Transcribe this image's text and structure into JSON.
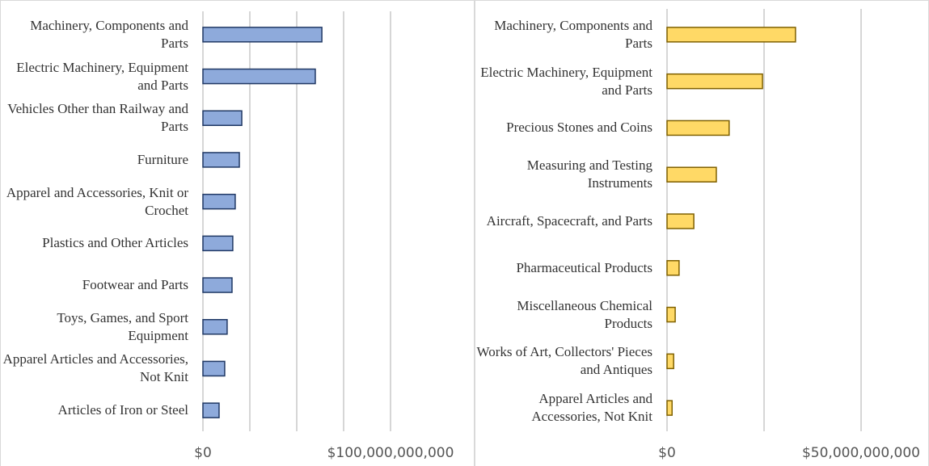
{
  "chart_data": [
    {
      "type": "bar",
      "orientation": "horizontal",
      "categories": [
        "Machinery, Components and Parts",
        "Electric Machinery, Equipment and Parts",
        "Vehicles Other than Railway and Parts",
        "Furniture",
        "Apparel and Accessories, Knit or Crochet",
        "Plastics and Other Articles",
        "Footwear and Parts",
        "Toys, Games, and Sport Equipment",
        "Apparel Articles and Accessories, Not Knit",
        "Articles of Iron or Steel"
      ],
      "values": [
        63400000000,
        59900000000,
        20700000000,
        19400000000,
        17200000000,
        15900000000,
        15500000000,
        12900000000,
        11600000000,
        8600000000
      ],
      "color": "#8eaadb",
      "edge_color": "#203864",
      "xlim": [
        0,
        100000000000
      ],
      "xticks": [
        {
          "value": 0,
          "label": "$0"
        },
        {
          "value": 100000000000,
          "label": "$100,000,000,000"
        }
      ],
      "xminor": [
        25000000000,
        50000000000,
        75000000000
      ],
      "grid": true
    },
    {
      "type": "bar",
      "orientation": "horizontal",
      "categories": [
        "Machinery, Components and Parts",
        "Electric Machinery, Equipment and Parts",
        "Precious Stones and Coins",
        "Measuring and Testing Instruments",
        "Aircraft, Spacecraft, and Parts",
        "Pharmaceutical Products",
        "Miscellaneous Chemical Products",
        "Works of Art, Collectors' Pieces and Antiques",
        "Apparel Articles and Accessories, Not Knit"
      ],
      "values": [
        33100000000,
        24600000000,
        16000000000,
        12700000000,
        6900000000,
        3100000000,
        2100000000,
        1700000000,
        1300000000
      ],
      "color": "#ffd966",
      "edge_color": "#7f6000",
      "xlim": [
        0,
        50000000000
      ],
      "xticks": [
        {
          "value": 0,
          "label": "$0"
        },
        {
          "value": 50000000000,
          "label": "$50,000,000,000"
        }
      ],
      "xminor": [
        25000000000
      ],
      "grid": true
    }
  ]
}
